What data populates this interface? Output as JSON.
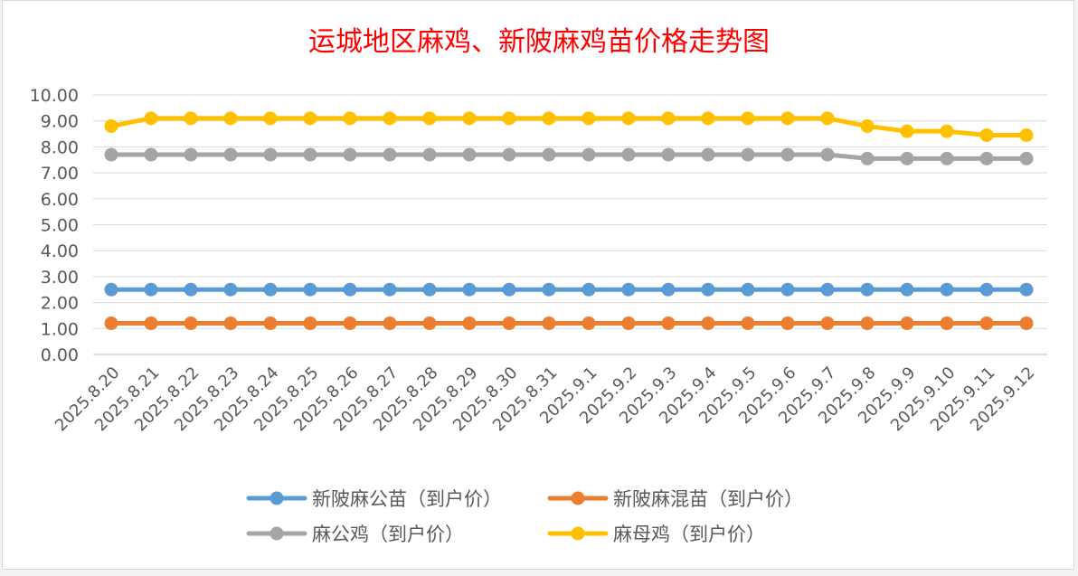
{
  "chart_data": {
    "type": "line",
    "title": "运城地区麻鸡、新陂麻鸡苗价格走势图",
    "categories": [
      "2025.8.20",
      "2025.8.21",
      "2025.8.22",
      "2025.8.23",
      "2025.8.24",
      "2025.8.25",
      "2025.8.26",
      "2025.8.27",
      "2025.8.28",
      "2025.8.29",
      "2025.8.30",
      "2025.8.31",
      "2025.9.1",
      "2025.9.2",
      "2025.9.3",
      "2025.9.4",
      "2025.9.5",
      "2025.9.6",
      "2025.9.7",
      "2025.9.8",
      "2025.9.9",
      "2025.9.10",
      "2025.9.11",
      "2025.9.12"
    ],
    "ylim": [
      0,
      10
    ],
    "ystep": 1,
    "ytick_labels": [
      "0.00",
      "1.00",
      "2.00",
      "3.00",
      "4.00",
      "5.00",
      "6.00",
      "7.00",
      "8.00",
      "9.00",
      "10.00"
    ],
    "grid": true,
    "legend_position": "bottom",
    "series": [
      {
        "name": "新陂麻公苗（到户价）",
        "color": "#5b9bd5",
        "values": [
          2.5,
          2.5,
          2.5,
          2.5,
          2.5,
          2.5,
          2.5,
          2.5,
          2.5,
          2.5,
          2.5,
          2.5,
          2.5,
          2.5,
          2.5,
          2.5,
          2.5,
          2.5,
          2.5,
          2.5,
          2.5,
          2.5,
          2.5,
          2.5
        ]
      },
      {
        "name": "新陂麻混苗（到户价）",
        "color": "#ed7d31",
        "values": [
          1.2,
          1.2,
          1.2,
          1.2,
          1.2,
          1.2,
          1.2,
          1.2,
          1.2,
          1.2,
          1.2,
          1.2,
          1.2,
          1.2,
          1.2,
          1.2,
          1.2,
          1.2,
          1.2,
          1.2,
          1.2,
          1.2,
          1.2,
          1.2
        ]
      },
      {
        "name": "麻公鸡（到户价）",
        "color": "#a5a5a5",
        "values": [
          7.7,
          7.7,
          7.7,
          7.7,
          7.7,
          7.7,
          7.7,
          7.7,
          7.7,
          7.7,
          7.7,
          7.7,
          7.7,
          7.7,
          7.7,
          7.7,
          7.7,
          7.7,
          7.7,
          7.55,
          7.55,
          7.55,
          7.55,
          7.55
        ]
      },
      {
        "name": "麻母鸡（到户价）",
        "color": "#ffc000",
        "values": [
          8.8,
          9.1,
          9.1,
          9.1,
          9.1,
          9.1,
          9.1,
          9.1,
          9.1,
          9.1,
          9.1,
          9.1,
          9.1,
          9.1,
          9.1,
          9.1,
          9.1,
          9.1,
          9.1,
          8.8,
          8.6,
          8.6,
          8.45,
          8.45
        ]
      }
    ]
  }
}
